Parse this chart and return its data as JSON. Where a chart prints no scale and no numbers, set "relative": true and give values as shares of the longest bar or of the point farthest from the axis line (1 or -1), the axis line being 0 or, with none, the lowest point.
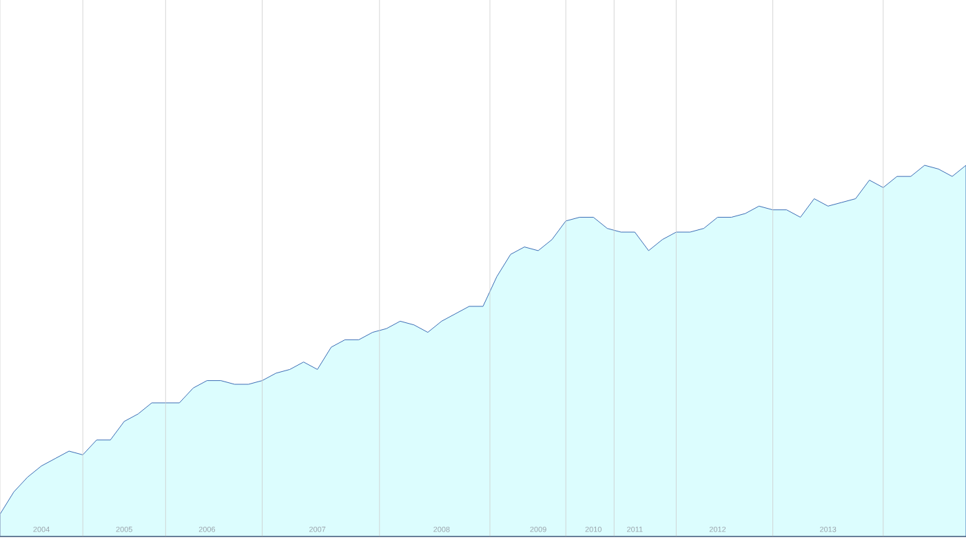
{
  "chart_data": {
    "type": "area",
    "relative": true,
    "categories": [
      null,
      null,
      null,
      "2004",
      null,
      null,
      null,
      null,
      null,
      "2005",
      null,
      null,
      null,
      null,
      null,
      "2006",
      null,
      null,
      null,
      null,
      null,
      null,
      null,
      "2007",
      null,
      null,
      null,
      null,
      null,
      null,
      null,
      null,
      "2008",
      null,
      null,
      null,
      null,
      null,
      null,
      "2009",
      null,
      null,
      null,
      "2010",
      null,
      null,
      "2011",
      null,
      null,
      null,
      null,
      null,
      "2012",
      null,
      null,
      null,
      null,
      null,
      null,
      null,
      "2013",
      null,
      null,
      null,
      null,
      null,
      null,
      null,
      null,
      null,
      null
    ],
    "series": [
      {
        "color": "#3b6db5",
        "values": [
          0.06,
          0.12,
          0.16,
          0.19,
          0.21,
          0.23,
          0.22,
          0.26,
          0.26,
          0.31,
          0.33,
          0.36,
          0.36,
          0.36,
          0.4,
          0.42,
          0.42,
          0.41,
          0.41,
          0.42,
          0.44,
          0.45,
          0.47,
          0.45,
          0.51,
          0.53,
          0.53,
          0.55,
          0.56,
          0.58,
          0.57,
          0.55,
          0.58,
          0.6,
          0.62,
          0.62,
          0.7,
          0.76,
          0.78,
          0.77,
          0.8,
          0.85,
          0.86,
          0.86,
          0.83,
          0.82,
          0.82,
          0.77,
          0.8,
          0.82,
          0.82,
          0.83,
          0.86,
          0.86,
          0.87,
          0.89,
          0.88,
          0.88,
          0.86,
          0.91,
          0.89,
          0.9,
          0.91,
          0.96,
          0.94,
          0.97,
          0.97,
          1,
          0.99,
          0.97,
          1
        ]
      }
    ],
    "grid": "x"
  }
}
